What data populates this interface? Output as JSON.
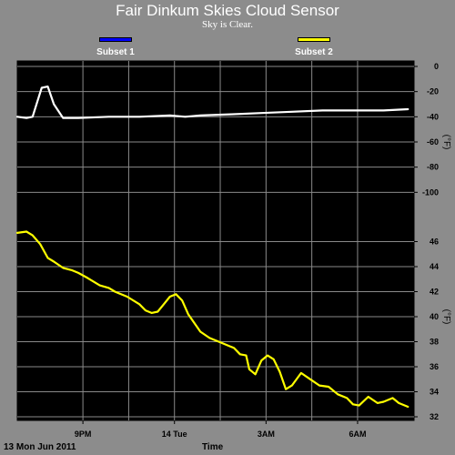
{
  "title": "Fair Dinkum Skies Cloud Sensor",
  "status_text": "Sky is Clear.",
  "legend": [
    {
      "label": "Subset 1",
      "color": "#0000ff"
    },
    {
      "label": "Subset 2",
      "color": "#ffff00"
    }
  ],
  "footer": {
    "date_label": "13 Mon Jun 2011",
    "xlabel": "Time"
  },
  "chart_data": [
    {
      "type": "line",
      "panel": "upper",
      "ylabel": "(°F)",
      "ylim": [
        -120,
        0
      ],
      "yticks": [
        0,
        -20,
        -40,
        -60,
        -80,
        -100
      ],
      "grid": true,
      "series": [
        {
          "color": "#ffffff",
          "x": [
            0.0,
            0.3,
            0.5,
            0.8,
            1.0,
            1.2,
            1.5,
            2.0,
            3.0,
            4.0,
            5.0,
            5.5,
            6.0,
            7.0,
            8.0,
            9.0,
            10.0,
            11.0,
            12.0,
            12.8
          ],
          "y": [
            -40,
            -41,
            -40,
            -17,
            -16,
            -30,
            -41,
            -41,
            -40,
            -40,
            -39,
            -40,
            -39,
            -38,
            -37,
            -36,
            -35,
            -35,
            -35,
            -34
          ]
        }
      ]
    },
    {
      "type": "line",
      "panel": "lower",
      "ylabel": "(°F)",
      "ylim": [
        32,
        48
      ],
      "yticks": [
        46,
        44,
        42,
        40,
        38,
        36,
        34,
        32
      ],
      "grid": true,
      "xticks": [
        {
          "label": "9PM",
          "x": 2.15
        },
        {
          "label": "14 Tue",
          "x": 5.15
        },
        {
          "label": "3AM",
          "x": 8.15
        },
        {
          "label": "6AM",
          "x": 11.15
        }
      ],
      "series": [
        {
          "color": "#ffff00",
          "x": [
            0.0,
            0.3,
            0.5,
            0.75,
            1.0,
            1.2,
            1.5,
            1.8,
            2.0,
            2.3,
            2.7,
            3.0,
            3.2,
            3.6,
            4.0,
            4.2,
            4.4,
            4.6,
            4.8,
            5.0,
            5.2,
            5.4,
            5.6,
            5.8,
            6.0,
            6.3,
            6.6,
            6.9,
            7.1,
            7.3,
            7.5,
            7.6,
            7.8,
            8.0,
            8.2,
            8.4,
            8.6,
            8.8,
            9.0,
            9.3,
            9.6,
            9.9,
            10.2,
            10.5,
            10.8,
            11.0,
            11.2,
            11.5,
            11.8,
            12.0,
            12.3,
            12.5,
            12.8
          ],
          "y": [
            46.7,
            46.8,
            46.5,
            45.8,
            44.7,
            44.4,
            43.9,
            43.7,
            43.5,
            43.1,
            42.5,
            42.3,
            42.0,
            41.6,
            41.0,
            40.5,
            40.3,
            40.4,
            41.0,
            41.6,
            41.8,
            41.3,
            40.2,
            39.5,
            38.8,
            38.3,
            38.0,
            37.7,
            37.5,
            37.0,
            36.9,
            35.8,
            35.4,
            36.5,
            36.9,
            36.6,
            35.6,
            34.2,
            34.5,
            35.5,
            35.0,
            34.5,
            34.4,
            33.8,
            33.5,
            33.0,
            32.9,
            33.6,
            33.1,
            33.2,
            33.5,
            33.1,
            32.8
          ]
        }
      ]
    }
  ]
}
